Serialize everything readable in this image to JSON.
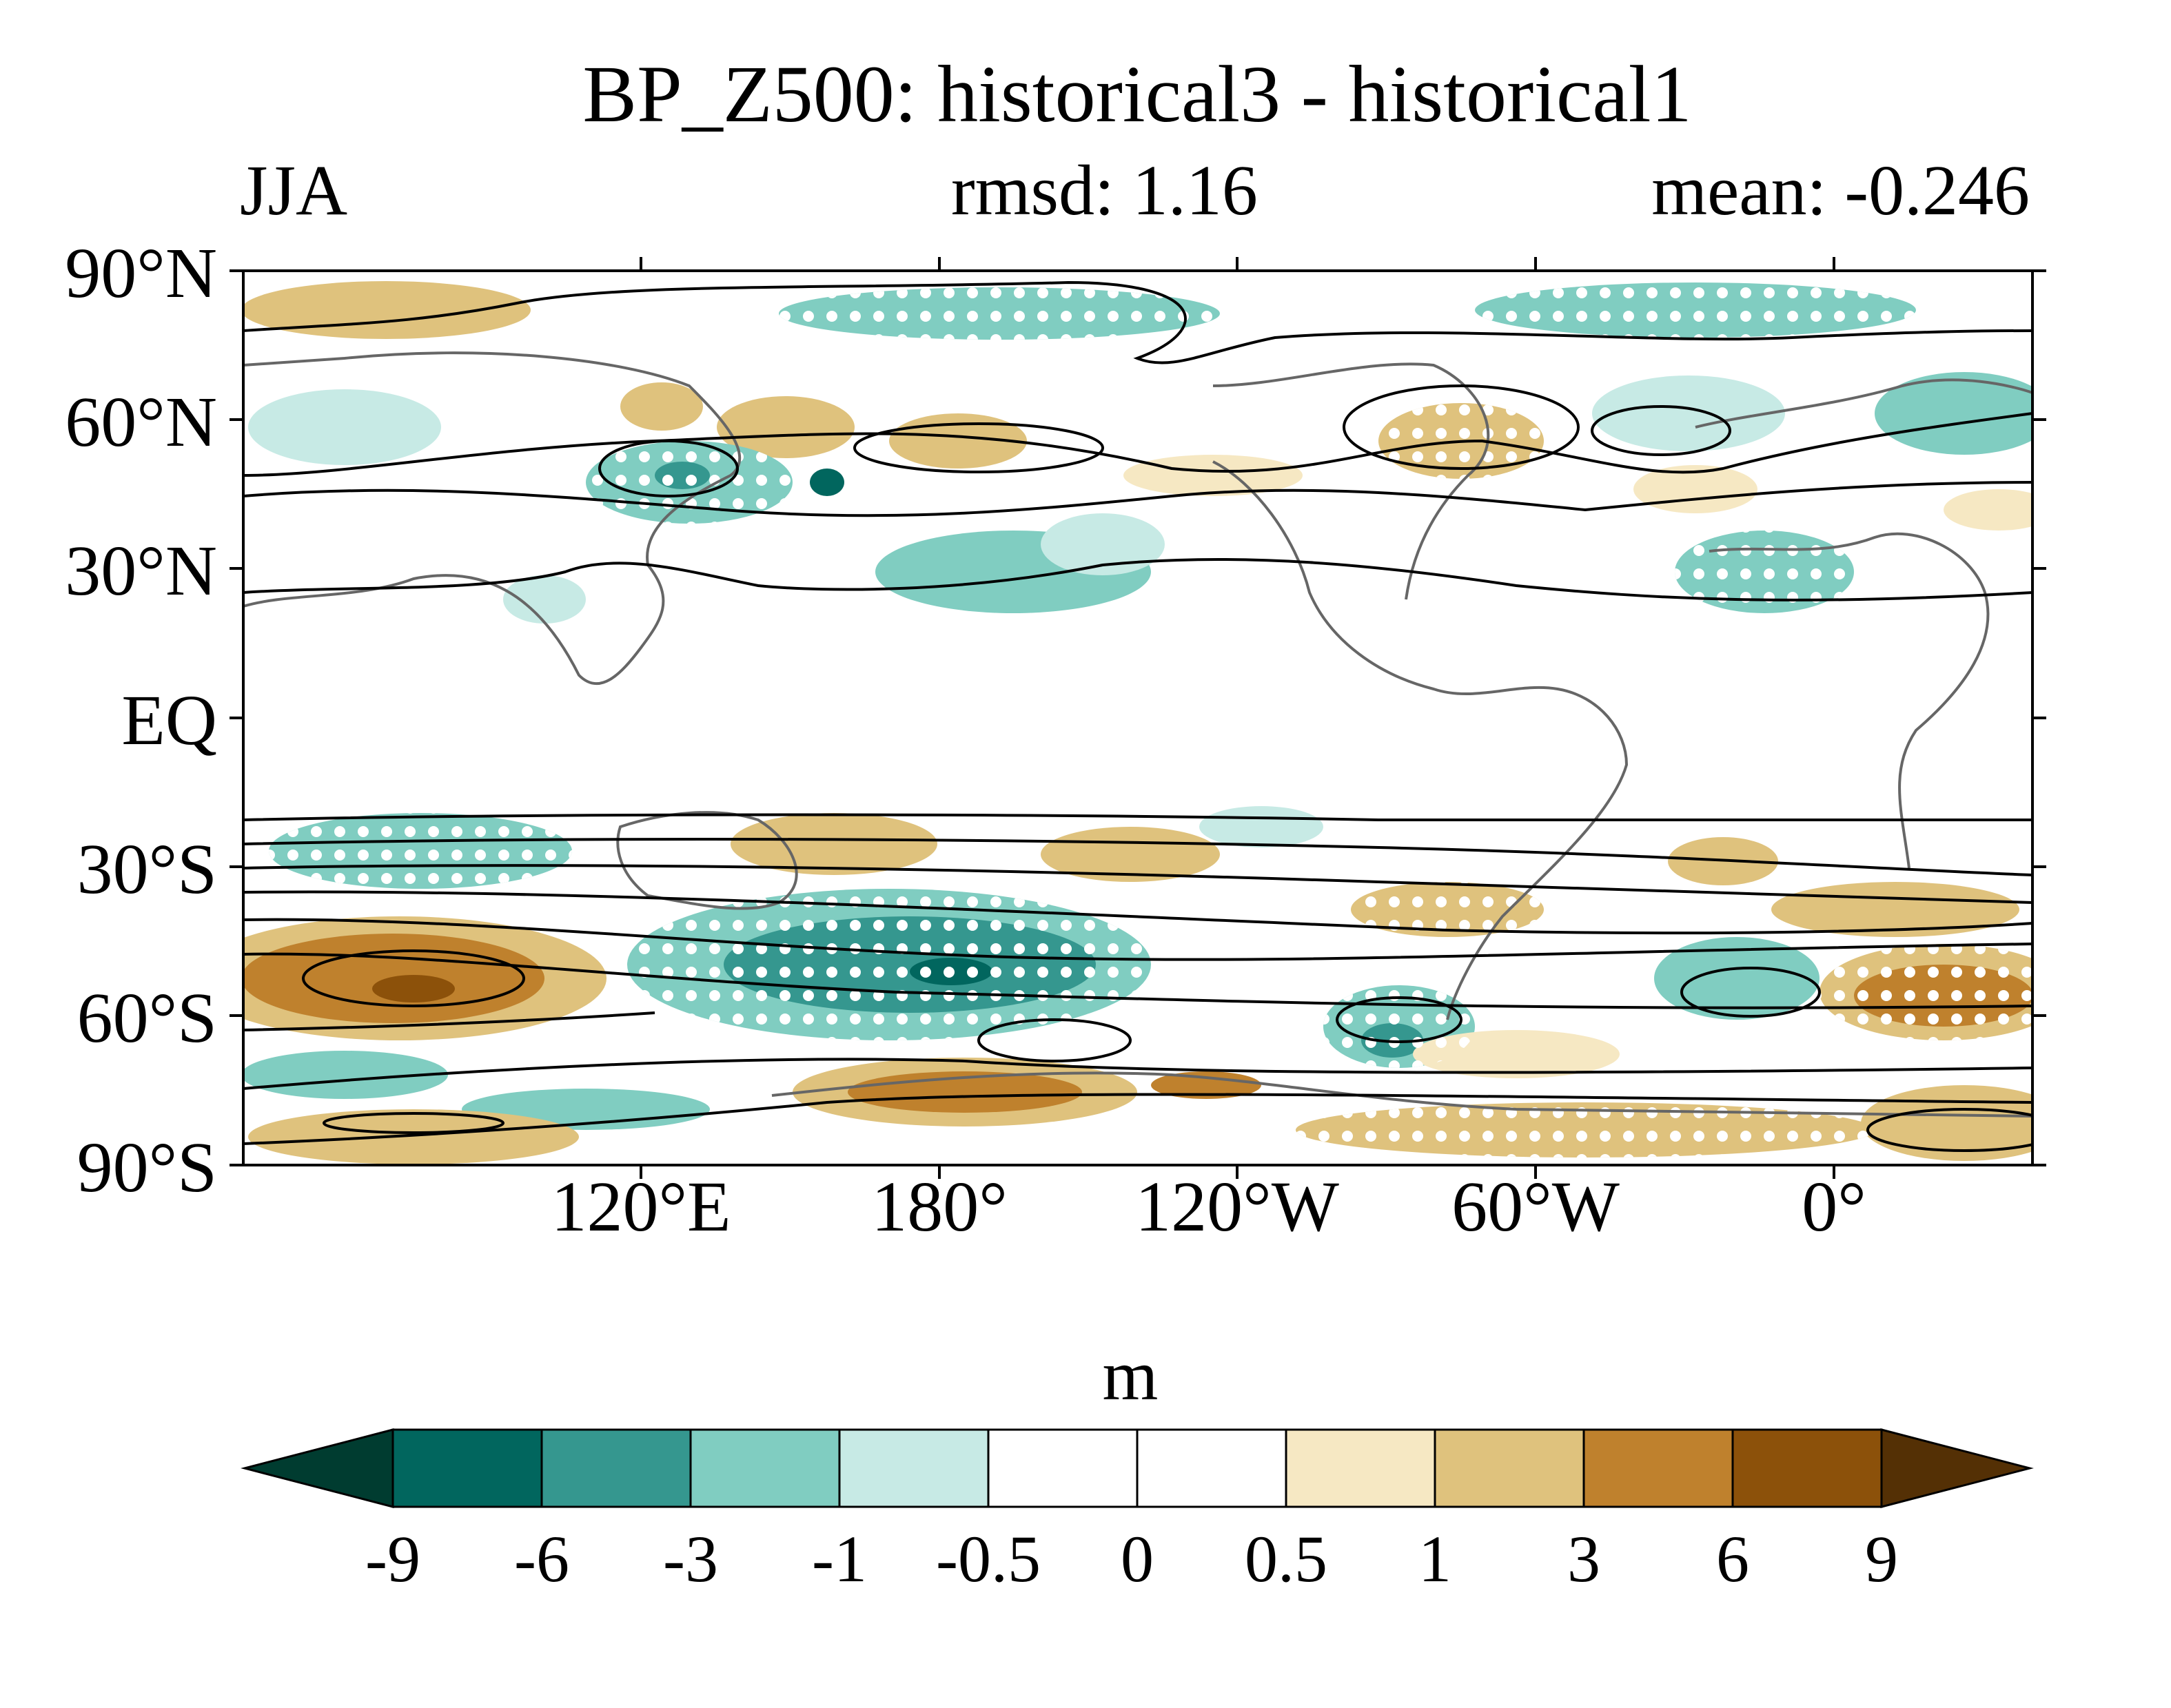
{
  "title": "BP_Z500: historical3 - historical1",
  "season": "JJA",
  "rmsd_text": "rmsd: 1.16",
  "mean_text": "mean: -0.246",
  "map": {
    "lat_ticks": [
      "90°N",
      "60°N",
      "30°N",
      "EQ",
      "30°S",
      "60°S",
      "90°S"
    ],
    "lon_ticks": [
      "120°E",
      "180°",
      "120°W",
      "60°W",
      "0°"
    ],
    "lon_range": [
      40,
      400
    ],
    "lat_range": [
      -90,
      90
    ],
    "projection": "cylindrical equidistant, centered on Pacific",
    "stippling": "white dots mark significant regions",
    "contours": "black climatology contours"
  },
  "colorbar": {
    "unit": "m",
    "levels": [
      "-9",
      "-6",
      "-3",
      "-1",
      "-0.5",
      "0",
      "0.5",
      "1",
      "3",
      "6",
      "9"
    ],
    "colors": [
      "#003c30",
      "#01665e",
      "#35978f",
      "#80cdc1",
      "#c7eae5",
      "#ffffff",
      "#ffffff",
      "#f6e8c3",
      "#dfc27d",
      "#bf812d",
      "#8c510a",
      "#543005"
    ]
  },
  "colors": {
    "coast": "#666666",
    "contour": "#000000"
  }
}
